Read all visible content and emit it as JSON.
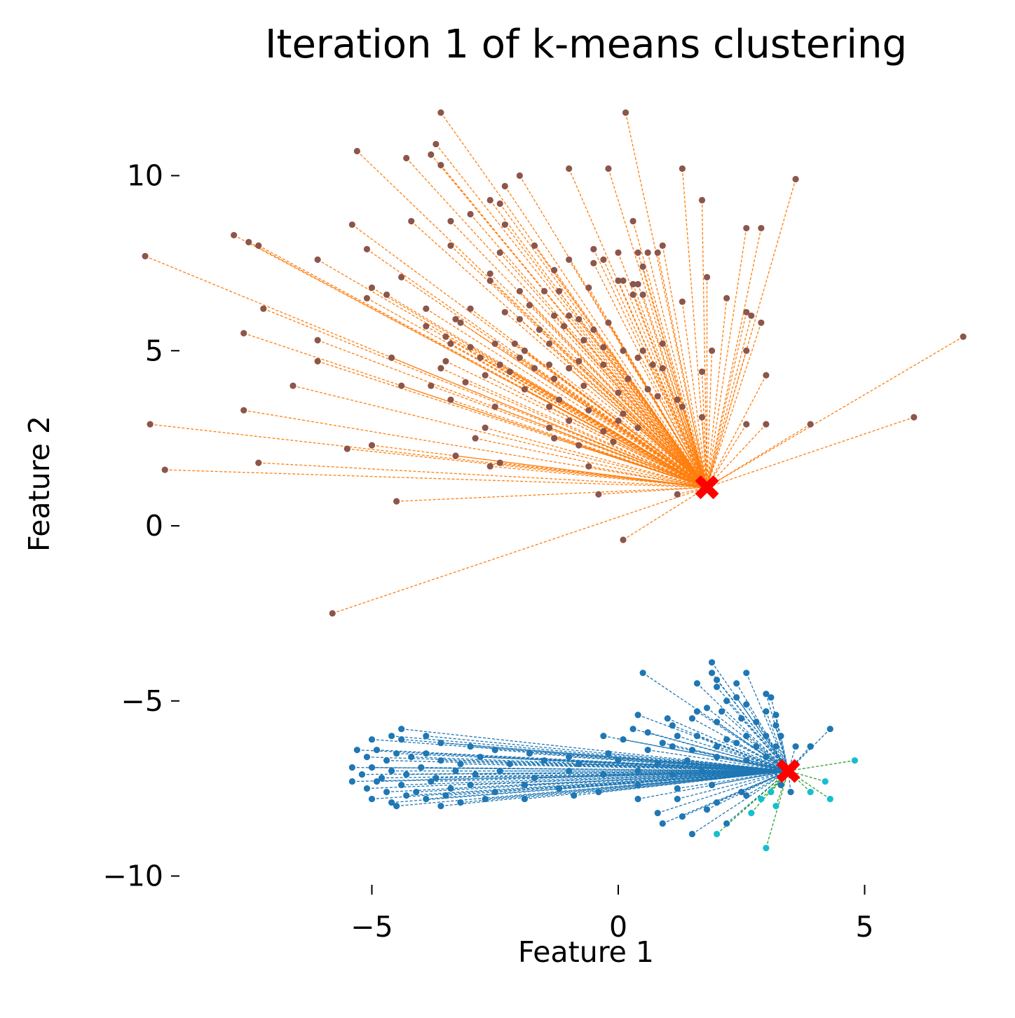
{
  "chart_data": {
    "type": "scatter",
    "title": "Iteration 1 of k-means clustering",
    "xlabel": "Feature 1",
    "ylabel": "Feature 2",
    "xlim": [
      -10.4,
      7.5
    ],
    "ylim": [
      -10.4,
      12.2
    ],
    "x_ticks": [
      -5,
      0,
      5
    ],
    "x_tick_labels": [
      "−5",
      "0",
      "5"
    ],
    "y_ticks": [
      10,
      5,
      0,
      -5,
      -10
    ],
    "y_tick_labels": [
      "10",
      "5",
      "0",
      "−5",
      "−10"
    ],
    "grid": false,
    "centroids": [
      {
        "x": 1.8,
        "y": 1.1,
        "marker": "X",
        "color": "#ff0000"
      },
      {
        "x": 3.45,
        "y": -7.0,
        "marker": "X",
        "color": "#ff0000"
      }
    ],
    "clusters": [
      {
        "point_color": "#8c564b",
        "line_color": "#ff7f0e",
        "centroid_index": 0,
        "points": [
          [
            -3.6,
            11.8
          ],
          [
            0.15,
            11.8
          ],
          [
            -5.3,
            10.7
          ],
          [
            -3.8,
            10.6
          ],
          [
            -3.7,
            10.9
          ],
          [
            -4.3,
            10.5
          ],
          [
            -3.6,
            10.3
          ],
          [
            -2.0,
            10.0
          ],
          [
            -1.0,
            10.2
          ],
          [
            -0.2,
            10.2
          ],
          [
            1.3,
            10.2
          ],
          [
            3.6,
            9.9
          ],
          [
            -2.3,
            9.7
          ],
          [
            -2.6,
            9.3
          ],
          [
            -2.4,
            9.2
          ],
          [
            1.7,
            9.3
          ],
          [
            -3.0,
            8.9
          ],
          [
            -7.8,
            8.3
          ],
          [
            -7.5,
            8.1
          ],
          [
            -5.4,
            8.6
          ],
          [
            -4.2,
            8.7
          ],
          [
            -3.4,
            8.7
          ],
          [
            -2.3,
            8.6
          ],
          [
            0.3,
            8.7
          ],
          [
            2.6,
            8.5
          ],
          [
            2.9,
            8.5
          ],
          [
            -7.3,
            8.0
          ],
          [
            -5.1,
            7.9
          ],
          [
            -3.4,
            8.0
          ],
          [
            -1.7,
            8.0
          ],
          [
            -0.5,
            7.9
          ],
          [
            0.0,
            7.8
          ],
          [
            0.4,
            7.8
          ],
          [
            0.6,
            7.8
          ],
          [
            0.8,
            7.8
          ],
          [
            0.9,
            8.0
          ],
          [
            -9.6,
            7.7
          ],
          [
            -6.1,
            7.6
          ],
          [
            -2.4,
            7.8
          ],
          [
            -1.0,
            7.6
          ],
          [
            -0.5,
            7.5
          ],
          [
            -0.3,
            7.6
          ],
          [
            -4.4,
            7.1
          ],
          [
            -2.6,
            7.2
          ],
          [
            -1.3,
            7.3
          ],
          [
            0.5,
            7.4
          ],
          [
            1.8,
            7.1
          ],
          [
            -2.6,
            7.0
          ],
          [
            0.0,
            7.0
          ],
          [
            0.1,
            7.0
          ],
          [
            0.3,
            6.9
          ],
          [
            0.4,
            6.9
          ],
          [
            -5.0,
            6.8
          ],
          [
            -2.0,
            6.7
          ],
          [
            -1.5,
            6.7
          ],
          [
            -1.2,
            6.7
          ],
          [
            -0.6,
            6.8
          ],
          [
            -4.7,
            6.6
          ],
          [
            0.3,
            6.6
          ],
          [
            0.5,
            6.6
          ],
          [
            -5.1,
            6.5
          ],
          [
            -1.8,
            6.3
          ],
          [
            -3.9,
            6.2
          ],
          [
            -3.0,
            6.2
          ],
          [
            1.3,
            6.4
          ],
          [
            2.2,
            6.5
          ],
          [
            -7.2,
            6.2
          ],
          [
            -2.3,
            6.1
          ],
          [
            -2.0,
            5.9
          ],
          [
            -1.3,
            6.0
          ],
          [
            -1.0,
            6.0
          ],
          [
            -0.8,
            5.9
          ],
          [
            -0.2,
            5.8
          ],
          [
            -0.5,
            5.6
          ],
          [
            2.6,
            6.1
          ],
          [
            2.7,
            6.0
          ],
          [
            -3.9,
            5.7
          ],
          [
            -3.2,
            5.8
          ],
          [
            -3.3,
            5.9
          ],
          [
            -1.6,
            5.6
          ],
          [
            -1.1,
            5.7
          ],
          [
            2.9,
            5.8
          ],
          [
            -7.6,
            5.5
          ],
          [
            -6.1,
            5.3
          ],
          [
            -3.4,
            5.2
          ],
          [
            -3.5,
            5.4
          ],
          [
            -3.0,
            5.1
          ],
          [
            -2.5,
            5.2
          ],
          [
            -2.1,
            5.2
          ],
          [
            -1.9,
            5.0
          ],
          [
            -1.4,
            5.2
          ],
          [
            -0.7,
            5.3
          ],
          [
            -0.3,
            5.1
          ],
          [
            0.1,
            5.0
          ],
          [
            0.5,
            5.0
          ],
          [
            0.9,
            5.2
          ],
          [
            1.9,
            5.0
          ],
          [
            2.6,
            5.0
          ],
          [
            -6.1,
            4.7
          ],
          [
            -4.6,
            4.8
          ],
          [
            -3.5,
            4.7
          ],
          [
            -2.8,
            4.8
          ],
          [
            -2.4,
            4.6
          ],
          [
            -2.0,
            4.8
          ],
          [
            -1.7,
            4.5
          ],
          [
            -1.4,
            4.6
          ],
          [
            -1.0,
            4.5
          ],
          [
            -0.8,
            4.7
          ],
          [
            -0.3,
            4.6
          ],
          [
            0.4,
            4.8
          ],
          [
            0.7,
            4.6
          ],
          [
            0.9,
            4.5
          ],
          [
            1.7,
            4.4
          ],
          [
            -3.6,
            4.5
          ],
          [
            -2.7,
            4.3
          ],
          [
            -2.2,
            4.4
          ],
          [
            -1.3,
            4.2
          ],
          [
            -0.7,
            4.0
          ],
          [
            0.2,
            4.2
          ],
          [
            -6.6,
            4.0
          ],
          [
            -4.4,
            4.0
          ],
          [
            -3.8,
            4.0
          ],
          [
            -3.1,
            4.1
          ],
          [
            -1.9,
            3.9
          ],
          [
            -1.2,
            3.6
          ],
          [
            0.0,
            3.8
          ],
          [
            0.6,
            3.9
          ],
          [
            0.8,
            3.7
          ],
          [
            1.2,
            3.6
          ],
          [
            3.0,
            4.3
          ],
          [
            -3.4,
            3.6
          ],
          [
            -2.5,
            3.4
          ],
          [
            -1.4,
            3.4
          ],
          [
            -0.6,
            3.3
          ],
          [
            0.1,
            3.2
          ],
          [
            1.3,
            3.4
          ],
          [
            -7.6,
            3.3
          ],
          [
            -1.0,
            3.0
          ],
          [
            0.0,
            3.0
          ],
          [
            1.7,
            3.1
          ],
          [
            -1.4,
            2.8
          ],
          [
            -0.3,
            2.7
          ],
          [
            0.4,
            2.8
          ],
          [
            2.6,
            2.9
          ],
          [
            3.0,
            2.9
          ],
          [
            3.9,
            2.9
          ],
          [
            6.0,
            3.1
          ],
          [
            7.0,
            5.4
          ],
          [
            -9.5,
            2.9
          ],
          [
            -2.7,
            2.8
          ],
          [
            -1.3,
            2.5
          ],
          [
            -2.9,
            2.5
          ],
          [
            -5.0,
            2.3
          ],
          [
            -5.5,
            2.2
          ],
          [
            -0.8,
            2.3
          ],
          [
            -0.1,
            2.4
          ],
          [
            -3.3,
            2.0
          ],
          [
            -2.4,
            1.8
          ],
          [
            -2.6,
            1.7
          ],
          [
            -0.6,
            1.7
          ],
          [
            -9.2,
            1.6
          ],
          [
            -7.3,
            1.8
          ],
          [
            -4.5,
            0.7
          ],
          [
            -0.4,
            0.9
          ],
          [
            1.2,
            0.9
          ],
          [
            0.1,
            -0.4
          ],
          [
            -5.8,
            -2.5
          ]
        ]
      },
      {
        "point_color": "#1f77b4",
        "line_color": "#1f77b4",
        "centroid_index": 1,
        "points": [
          [
            1.9,
            -3.9
          ],
          [
            0.5,
            -4.2
          ],
          [
            1.9,
            -4.2
          ],
          [
            2.6,
            -4.2
          ],
          [
            1.6,
            -4.5
          ],
          [
            2.0,
            -4.4
          ],
          [
            2.0,
            -4.6
          ],
          [
            2.4,
            -4.5
          ],
          [
            3.0,
            -4.8
          ],
          [
            3.1,
            -4.9
          ],
          [
            2.2,
            -5.0
          ],
          [
            2.4,
            -4.9
          ],
          [
            1.8,
            -5.2
          ],
          [
            2.1,
            -5.3
          ],
          [
            1.6,
            -5.3
          ],
          [
            2.6,
            -5.1
          ],
          [
            3.0,
            -5.3
          ],
          [
            3.2,
            -5.4
          ],
          [
            0.4,
            -5.4
          ],
          [
            1.0,
            -5.5
          ],
          [
            1.1,
            -5.7
          ],
          [
            1.5,
            -5.5
          ],
          [
            2.0,
            -5.6
          ],
          [
            2.5,
            -5.5
          ],
          [
            2.8,
            -5.6
          ],
          [
            3.2,
            -5.7
          ],
          [
            -4.4,
            -5.8
          ],
          [
            -0.3,
            -6.0
          ],
          [
            0.1,
            -6.1
          ],
          [
            0.3,
            -5.8
          ],
          [
            0.6,
            -5.9
          ],
          [
            0.9,
            -6.2
          ],
          [
            1.2,
            -6.0
          ],
          [
            1.6,
            -6.0
          ],
          [
            2.2,
            -6.1
          ],
          [
            2.6,
            -6.0
          ],
          [
            3.0,
            -6.0
          ],
          [
            3.3,
            -6.0
          ],
          [
            4.3,
            -5.8
          ],
          [
            -5.0,
            -6.1
          ],
          [
            -4.6,
            -6.0
          ],
          [
            -4.4,
            -6.1
          ],
          [
            -3.9,
            -6.0
          ],
          [
            -3.6,
            -6.2
          ],
          [
            -3.0,
            -6.3
          ],
          [
            -2.5,
            -6.4
          ],
          [
            -1.8,
            -6.5
          ],
          [
            -1.0,
            -6.6
          ],
          [
            -0.2,
            -6.5
          ],
          [
            0.6,
            -6.4
          ],
          [
            1.1,
            -6.3
          ],
          [
            1.5,
            -6.4
          ],
          [
            2.0,
            -6.3
          ],
          [
            2.4,
            -6.2
          ],
          [
            2.8,
            -6.3
          ],
          [
            3.2,
            -6.3
          ],
          [
            3.6,
            -6.3
          ],
          [
            3.9,
            -6.3
          ],
          [
            -5.3,
            -6.4
          ],
          [
            -5.1,
            -6.6
          ],
          [
            -4.9,
            -6.4
          ],
          [
            -4.7,
            -6.7
          ],
          [
            -4.5,
            -6.5
          ],
          [
            -4.2,
            -6.6
          ],
          [
            -3.9,
            -6.5
          ],
          [
            -3.6,
            -6.7
          ],
          [
            -3.2,
            -6.8
          ],
          [
            -2.8,
            -6.6
          ],
          [
            -2.2,
            -6.8
          ],
          [
            -1.5,
            -6.7
          ],
          [
            -0.8,
            -6.8
          ],
          [
            0.0,
            -6.7
          ],
          [
            0.8,
            -6.8
          ],
          [
            1.4,
            -6.7
          ],
          [
            2.0,
            -6.6
          ],
          [
            2.6,
            -6.7
          ],
          [
            3.0,
            -6.6
          ],
          [
            -5.4,
            -6.9
          ],
          [
            -5.2,
            -7.1
          ],
          [
            -5.0,
            -6.9
          ],
          [
            -4.8,
            -7.2
          ],
          [
            -4.6,
            -7.0
          ],
          [
            -4.3,
            -7.1
          ],
          [
            -4.0,
            -6.9
          ],
          [
            -3.7,
            -7.2
          ],
          [
            -3.3,
            -7.0
          ],
          [
            -2.9,
            -7.1
          ],
          [
            -2.4,
            -7.0
          ],
          [
            -1.7,
            -7.2
          ],
          [
            -1.0,
            -7.0
          ],
          [
            -0.3,
            -7.1
          ],
          [
            0.4,
            -7.0
          ],
          [
            1.1,
            -7.1
          ],
          [
            1.7,
            -7.0
          ],
          [
            2.3,
            -7.1
          ],
          [
            2.8,
            -7.0
          ],
          [
            -5.4,
            -7.3
          ],
          [
            -5.1,
            -7.5
          ],
          [
            -4.9,
            -7.3
          ],
          [
            -4.7,
            -7.6
          ],
          [
            -4.4,
            -7.4
          ],
          [
            -4.1,
            -7.6
          ],
          [
            -3.8,
            -7.3
          ],
          [
            -3.4,
            -7.5
          ],
          [
            -3.0,
            -7.4
          ],
          [
            -2.5,
            -7.6
          ],
          [
            -1.9,
            -7.4
          ],
          [
            -1.2,
            -7.5
          ],
          [
            -0.4,
            -7.6
          ],
          [
            0.4,
            -7.4
          ],
          [
            1.2,
            -7.5
          ],
          [
            1.9,
            -7.4
          ],
          [
            2.5,
            -7.6
          ],
          [
            -5.0,
            -7.8
          ],
          [
            -4.6,
            -7.9
          ],
          [
            -4.3,
            -7.7
          ],
          [
            -3.9,
            -7.8
          ],
          [
            -3.5,
            -7.7
          ],
          [
            -3.2,
            -7.9
          ],
          [
            -2.7,
            -7.8
          ],
          [
            -1.9,
            -7.8
          ],
          [
            -0.9,
            -7.7
          ],
          [
            0.4,
            -7.8
          ],
          [
            1.2,
            -7.8
          ],
          [
            2.0,
            -7.9
          ],
          [
            2.6,
            -7.7
          ],
          [
            -4.5,
            -8.0
          ],
          [
            -3.6,
            -8.0
          ],
          [
            0.8,
            -8.2
          ],
          [
            1.3,
            -8.3
          ],
          [
            1.8,
            -8.1
          ],
          [
            0.9,
            -8.5
          ],
          [
            2.2,
            -8.5
          ],
          [
            1.5,
            -8.8
          ],
          [
            3.3,
            -7.4
          ],
          [
            3.5,
            -7.6
          ],
          [
            3.6,
            -6.8
          ],
          [
            3.9,
            -6.3
          ]
        ]
      },
      {
        "point_color": "#17becf",
        "line_color": "#2ca02c",
        "centroid_index": 1,
        "points": [
          [
            4.8,
            -6.7
          ],
          [
            4.2,
            -7.3
          ],
          [
            4.3,
            -7.8
          ],
          [
            3.9,
            -7.6
          ],
          [
            3.1,
            -7.6
          ],
          [
            2.9,
            -7.8
          ],
          [
            2.7,
            -8.2
          ],
          [
            3.2,
            -8.0
          ],
          [
            2.0,
            -8.8
          ],
          [
            3.0,
            -9.2
          ]
        ]
      }
    ]
  }
}
